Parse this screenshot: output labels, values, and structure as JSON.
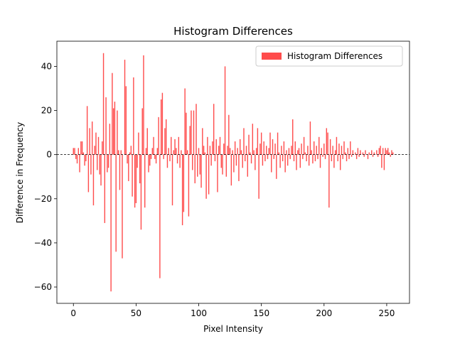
{
  "chart_data": {
    "type": "bar",
    "title": "Histogram Differences",
    "x_label": "Pixel Intensity",
    "y_label": "Difference in Frequency",
    "series": [
      {
        "name": "Histogram Differences",
        "color": "#ff0000",
        "alpha": 0.7,
        "x": [
          0,
          1,
          2,
          3,
          4,
          5,
          6,
          7,
          8,
          9,
          10,
          11,
          12,
          13,
          14,
          15,
          16,
          17,
          18,
          19,
          20,
          21,
          22,
          23,
          24,
          25,
          26,
          27,
          28,
          29,
          30,
          31,
          32,
          33,
          34,
          35,
          36,
          37,
          38,
          39,
          40,
          41,
          42,
          43,
          44,
          45,
          46,
          47,
          48,
          49,
          50,
          51,
          52,
          53,
          54,
          55,
          56,
          57,
          58,
          59,
          60,
          61,
          62,
          63,
          64,
          65,
          66,
          67,
          68,
          69,
          70,
          71,
          72,
          73,
          74,
          75,
          76,
          77,
          78,
          79,
          80,
          81,
          82,
          83,
          84,
          85,
          86,
          87,
          88,
          89,
          90,
          91,
          92,
          93,
          94,
          95,
          96,
          97,
          98,
          99,
          100,
          101,
          102,
          103,
          104,
          105,
          106,
          107,
          108,
          109,
          110,
          111,
          112,
          113,
          114,
          115,
          116,
          117,
          118,
          119,
          120,
          121,
          122,
          123,
          124,
          125,
          126,
          127,
          128,
          129,
          130,
          131,
          132,
          133,
          134,
          135,
          136,
          137,
          138,
          139,
          140,
          141,
          142,
          143,
          144,
          145,
          146,
          147,
          148,
          149,
          150,
          151,
          152,
          153,
          154,
          155,
          156,
          157,
          158,
          159,
          160,
          161,
          162,
          163,
          164,
          165,
          166,
          167,
          168,
          169,
          170,
          171,
          172,
          173,
          174,
          175,
          176,
          177,
          178,
          179,
          180,
          181,
          182,
          183,
          184,
          185,
          186,
          187,
          188,
          189,
          190,
          191,
          192,
          193,
          194,
          195,
          196,
          197,
          198,
          199,
          200,
          201,
          202,
          203,
          204,
          205,
          206,
          207,
          208,
          209,
          210,
          211,
          212,
          213,
          214,
          215,
          216,
          217,
          218,
          219,
          220,
          221,
          222,
          223,
          224,
          225,
          226,
          227,
          228,
          229,
          230,
          231,
          232,
          233,
          234,
          235,
          236,
          237,
          238,
          239,
          240,
          241,
          242,
          243,
          244,
          245,
          246,
          247,
          248,
          249,
          250,
          251,
          252,
          253,
          254,
          255
        ],
        "values": [
          3,
          3,
          -2,
          -4,
          3,
          -8,
          6,
          6,
          1,
          -5,
          -3,
          22,
          -17,
          12,
          -9,
          15,
          -23,
          4,
          10,
          -7,
          8,
          -9,
          -14,
          6,
          46,
          -31,
          26,
          -8,
          -6,
          14,
          -62,
          37,
          21,
          24,
          -44,
          20,
          2,
          -16,
          2,
          -47,
          0,
          43,
          31,
          -4,
          -12,
          1,
          4,
          -19,
          35,
          -24,
          -22,
          -6,
          10,
          -13,
          -34,
          21,
          45,
          -24,
          3,
          12,
          -8,
          -5,
          -2,
          3,
          8,
          -2,
          -4,
          3,
          17,
          -56,
          25,
          28,
          -2,
          12,
          16,
          -6,
          3,
          -3,
          8,
          -23,
          2,
          7,
          3,
          -4,
          8,
          -6,
          2,
          -32,
          -26,
          30,
          19,
          2,
          -28,
          13,
          20,
          -7,
          20,
          -13,
          23,
          -10,
          3,
          -9,
          -15,
          12,
          4,
          1,
          -20,
          8,
          -18,
          4,
          -5,
          6,
          23,
          -3,
          7,
          -17,
          4,
          8,
          -6,
          -9,
          5,
          40,
          -10,
          4,
          18,
          3,
          -14,
          2,
          -8,
          6,
          -5,
          3,
          -12,
          7,
          2,
          -6,
          12,
          -3,
          4,
          -10,
          9,
          1,
          -4,
          14,
          2,
          -7,
          3,
          12,
          -20,
          5,
          10,
          -5,
          6,
          -3,
          4,
          -2,
          3,
          10,
          -8,
          7,
          -2,
          5,
          -11,
          10,
          1,
          -6,
          4,
          -3,
          6,
          -8,
          2,
          -5,
          3,
          -2,
          4,
          16,
          -3,
          6,
          -7,
          2,
          3,
          -6,
          5,
          -2,
          8,
          1,
          -3,
          4,
          -5,
          15,
          2,
          -4,
          6,
          -3,
          4,
          -2,
          8,
          -6,
          3,
          -1,
          5,
          -2,
          12,
          10,
          -24,
          7,
          -3,
          4,
          -6,
          2,
          8,
          -3,
          5,
          -7,
          4,
          -2,
          6,
          1,
          -3,
          3,
          -2,
          6,
          -1,
          2,
          0,
          1,
          -2,
          3,
          -1,
          2,
          0,
          1,
          -1,
          2,
          0,
          -2,
          1,
          0,
          2,
          -1,
          1,
          0,
          2,
          -1,
          3,
          4,
          -6,
          3,
          -7,
          3,
          2,
          3,
          1,
          -1,
          2,
          1
        ]
      }
    ],
    "bar_width": 0.8,
    "xlim": [
      -13.19,
      268.19
    ],
    "ylim": [
      -67.4,
      51.4
    ],
    "xticks": [
      0,
      50,
      100,
      150,
      200,
      250
    ],
    "yticks": [
      {
        "value": -60,
        "label": "−60"
      },
      {
        "value": -40,
        "label": "−40"
      },
      {
        "value": -20,
        "label": "−20"
      },
      0,
      20,
      40
    ],
    "reference_line": {
      "y": 0,
      "style": "dashed",
      "color": "#000000"
    },
    "legend": "upper right"
  }
}
